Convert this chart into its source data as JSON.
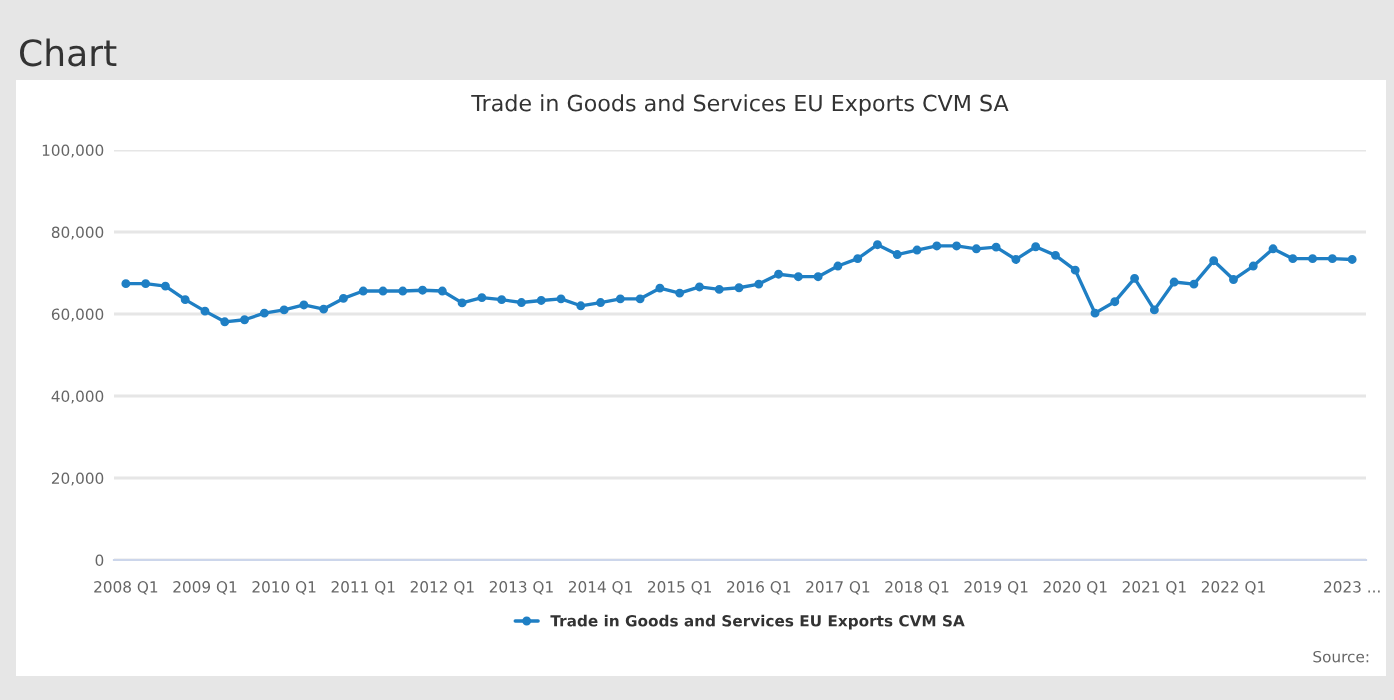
{
  "chart_data": {
    "type": "line",
    "title": "Trade in Goods and Services EU Exports CVM SA",
    "annotations": [
      "Chart",
      "Source:"
    ],
    "categories": [
      "2008 Q1",
      null,
      null,
      null,
      "2009 Q1",
      null,
      null,
      null,
      "2010 Q1",
      null,
      null,
      null,
      "2011 Q1",
      null,
      null,
      null,
      "2012 Q1",
      null,
      null,
      null,
      "2013 Q1",
      null,
      null,
      null,
      "2014 Q1",
      null,
      null,
      null,
      "2015 Q1",
      null,
      null,
      null,
      "2016 Q1",
      null,
      null,
      null,
      "2017 Q1",
      null,
      null,
      null,
      "2018 Q1",
      null,
      null,
      null,
      "2019 Q1",
      null,
      null,
      null,
      "2020 Q1",
      null,
      null,
      null,
      "2021 Q1",
      null,
      null,
      null,
      "2022 Q1",
      null,
      null,
      null,
      null,
      null,
      "2023 ..."
    ],
    "series": [
      {
        "name": "Trade in Goods and Services EU Exports CVM SA",
        "color": "#1f7fc4",
        "values": [
          67400,
          67400,
          66800,
          63500,
          60700,
          58100,
          58600,
          60200,
          61000,
          62200,
          61200,
          63800,
          65600,
          65600,
          65600,
          65800,
          65600,
          62700,
          64000,
          63500,
          62800,
          63300,
          63700,
          62000,
          62800,
          63700,
          63700,
          66300,
          65100,
          66600,
          66000,
          66400,
          67300,
          69700,
          69100,
          69100,
          71700,
          73500,
          76900,
          74500,
          75600,
          76600,
          76600,
          75900,
          76300,
          73300,
          76400,
          74300,
          70700,
          60200,
          63000,
          68700,
          61000,
          67800,
          67300,
          73000,
          68400,
          71700,
          75900,
          73500,
          73500,
          73500,
          73300
        ]
      }
    ],
    "ylim": [
      0,
      100000
    ],
    "yticks": [
      {
        "value": 0,
        "label": "0"
      },
      {
        "value": 20000,
        "label": "20,000"
      },
      {
        "value": 40000,
        "label": "40,000"
      },
      {
        "value": 60000,
        "label": "60,000"
      },
      {
        "value": 80000,
        "label": "80,000"
      },
      {
        "value": 100000,
        "label": "100,000"
      }
    ],
    "grid": "y",
    "legend": "bottom",
    "marker": "circle",
    "line_style": "solid"
  }
}
